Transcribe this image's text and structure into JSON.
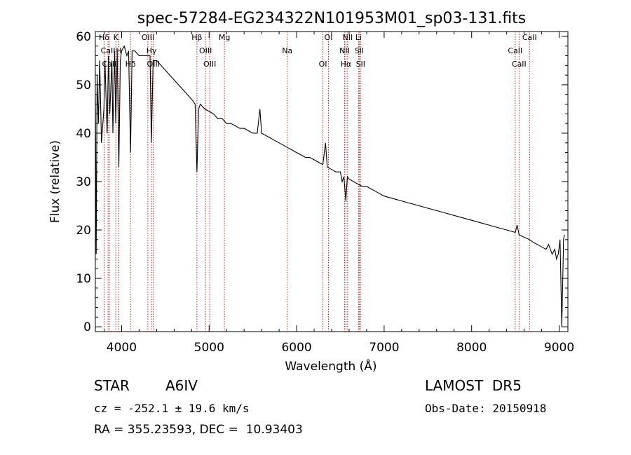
{
  "chart_data": {
    "type": "line",
    "title": "spec-57284-EG234322N101953M01_sp03-131.fits",
    "xlabel": "Wavelength (Å)",
    "ylabel": "Flux (relative)",
    "xlim": [
      3700,
      9100
    ],
    "ylim": [
      -1,
      61
    ],
    "x_ticks": [
      4000,
      5000,
      6000,
      7000,
      8000,
      9000
    ],
    "y_ticks": [
      0,
      10,
      20,
      30,
      40,
      50,
      60
    ],
    "grid": false,
    "series": [
      {
        "x": [
          3700,
          3710,
          3720,
          3735,
          3750,
          3770,
          3798,
          3810,
          3835,
          3850,
          3865,
          3889,
          3900,
          3920,
          3933,
          3950,
          3968,
          3985,
          4000,
          4030,
          4060,
          4080,
          4102,
          4120,
          4150,
          4200,
          4250,
          4300,
          4325,
          4340,
          4360,
          4400,
          4450,
          4500,
          4550,
          4600,
          4650,
          4700,
          4750,
          4800,
          4840,
          4861,
          4880,
          4900,
          4950,
          5000,
          5050,
          5100,
          5150,
          5200,
          5250,
          5300,
          5350,
          5400,
          5450,
          5500,
          5550,
          5580,
          5600,
          5650,
          5700,
          5750,
          5800,
          5850,
          5900,
          5950,
          6000,
          6050,
          6100,
          6150,
          6200,
          6250,
          6300,
          6330,
          6350,
          6400,
          6450,
          6500,
          6520,
          6540,
          6563,
          6580,
          6600,
          6650,
          6700,
          6750,
          6800,
          6900,
          7000,
          7100,
          7200,
          7300,
          7400,
          7500,
          7600,
          7700,
          7800,
          7900,
          8000,
          8100,
          8200,
          8300,
          8400,
          8498,
          8520,
          8542,
          8600,
          8662,
          8700,
          8750,
          8800,
          8850,
          8880,
          8900,
          8920,
          8950,
          8970,
          8990,
          9010,
          9030,
          9050,
          9060
        ],
        "y": [
          48,
          15,
          52,
          42,
          55,
          38,
          45,
          55,
          40,
          56,
          44,
          55,
          40,
          57,
          42,
          57,
          33,
          55,
          57,
          58,
          56,
          57,
          36,
          57,
          57,
          56,
          56,
          56,
          56,
          38,
          55,
          55,
          54,
          53,
          52,
          51,
          50,
          49,
          48,
          47,
          46,
          32,
          45,
          46,
          45,
          44.5,
          44,
          43,
          43,
          42,
          42,
          41.5,
          41,
          41,
          40.5,
          40,
          40,
          45,
          40,
          39.5,
          39,
          38.5,
          38,
          37.5,
          37,
          36.5,
          36,
          35.5,
          35,
          35,
          34.5,
          34,
          33.5,
          38,
          33,
          32.5,
          32,
          32,
          30,
          31,
          26,
          31,
          30.5,
          30,
          29.5,
          29,
          29,
          28,
          27,
          26.5,
          26,
          25.5,
          25,
          24.5,
          24,
          23.5,
          23,
          22.5,
          22,
          21.5,
          21,
          20.5,
          20,
          19.5,
          21,
          19,
          18.5,
          18,
          17.5,
          17,
          16.5,
          16,
          17,
          16,
          15,
          16,
          14,
          15,
          18,
          0,
          18,
          19
        ]
      }
    ],
    "spectral_lines": [
      {
        "label": "Hδ",
        "x": 3800
      },
      {
        "label": "CaII",
        "x": 3845
      },
      {
        "label": "CaII",
        "x": 3860
      },
      {
        "label": "K",
        "x": 3934
      },
      {
        "label": "H",
        "x": 3969
      },
      {
        "label": "Hδ",
        "x": 4102
      },
      {
        "label": "OIII",
        "x": 4300
      },
      {
        "label": "Hγ",
        "x": 4341
      },
      {
        "label": "OIII",
        "x": 4363
      },
      {
        "label": "Hβ",
        "x": 4861
      },
      {
        "label": "OIII",
        "x": 4959
      },
      {
        "label": "OIII",
        "x": 5007
      },
      {
        "label": "Mg",
        "x": 5175
      },
      {
        "label": "Na",
        "x": 5893
      },
      {
        "label": "OI",
        "x": 6300
      },
      {
        "label": "OI",
        "x": 6364
      },
      {
        "label": "NII",
        "x": 6548
      },
      {
        "label": "Hα",
        "x": 6563
      },
      {
        "label": "NII",
        "x": 6583
      },
      {
        "label": "SII",
        "x": 6716
      },
      {
        "label": "SII",
        "x": 6731
      },
      {
        "label": "Li",
        "x": 6708
      },
      {
        "label": "CaII",
        "x": 8498
      },
      {
        "label": "CaII",
        "x": 8542
      },
      {
        "label": "CaII",
        "x": 8662
      }
    ]
  },
  "info": {
    "class_label": "STAR",
    "subclass": "A6IV",
    "survey": "LAMOST  DR5",
    "redshift": "cz = -252.1 ± 19.6 km/s",
    "obs_date": "Obs-Date: 20150918",
    "coords": "RA = 355.23593, DEC =  10.93403"
  }
}
